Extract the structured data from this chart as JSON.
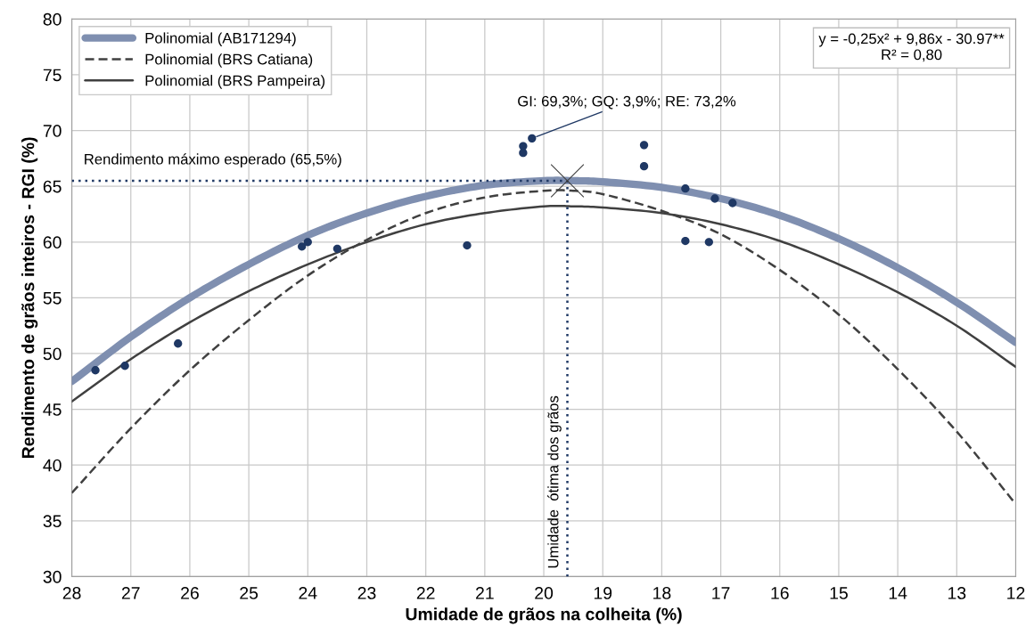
{
  "chart_data": {
    "type": "line",
    "xlabel": "Umidade de grãos na colheita (%)",
    "ylabel": "Rendimento de grãos inteiros - RGI (%)",
    "xlim": [
      28,
      12
    ],
    "xticks": [
      28,
      27,
      26,
      25,
      24,
      23,
      22,
      21,
      20,
      19,
      18,
      17,
      16,
      15,
      14,
      13,
      12
    ],
    "ylim": [
      30,
      80
    ],
    "yticks": [
      30,
      35,
      40,
      45,
      50,
      55,
      60,
      65,
      70,
      75,
      80
    ],
    "grid": true,
    "legend": "top left",
    "series": [
      {
        "name": "Polinomial (AB171294)",
        "line_style": "solid",
        "color": "#7f8fb0",
        "x": [
          28,
          27,
          26,
          25,
          24,
          23,
          22,
          21,
          20,
          19.5,
          19,
          18,
          17,
          16,
          15,
          14,
          13,
          12
        ],
        "values": [
          47.5,
          51.5,
          55,
          58,
          60.6,
          62.6,
          64.1,
          65.1,
          65.5,
          65.5,
          65.4,
          64.9,
          63.9,
          62.4,
          60.3,
          57.7,
          54.6,
          51
        ]
      },
      {
        "name": "Polinomial (BRS Catiana)",
        "line_style": "dashed",
        "color": "#404040",
        "x": [
          28,
          27,
          26,
          25,
          24,
          23,
          22,
          21,
          20,
          19.5,
          19,
          18,
          17,
          16,
          15,
          14,
          13,
          12
        ],
        "values": [
          37.5,
          43.3,
          48.5,
          53,
          57,
          60.2,
          62.6,
          64,
          64.6,
          64.6,
          64.3,
          62.8,
          60.7,
          57.5,
          53.5,
          48.6,
          43,
          36.5
        ]
      },
      {
        "name": "Polinomial (BRS Pampeira)",
        "line_style": "solid",
        "color": "#404040",
        "x": [
          28,
          27,
          26,
          25,
          24,
          23,
          22,
          21,
          20,
          19.5,
          19,
          18,
          17,
          16,
          15,
          14,
          13,
          12
        ],
        "values": [
          45.7,
          49.5,
          52.8,
          55.6,
          58,
          60,
          61.6,
          62.6,
          63.2,
          63.2,
          63.1,
          62.6,
          61.6,
          60.1,
          58,
          55.5,
          52.5,
          48.8
        ]
      },
      {
        "type": "scatter",
        "marker": "circle",
        "color": "#1f3864",
        "x": [
          27.6,
          27.1,
          26.2,
          24.1,
          24.0,
          23.5,
          21.3,
          20.35,
          20.35,
          20.2,
          18.3,
          18.3,
          17.6,
          17.6,
          17.1,
          17.2,
          16.8
        ],
        "values": [
          48.5,
          48.9,
          50.9,
          59.6,
          60.0,
          59.4,
          59.7,
          68.0,
          68.6,
          69.3,
          68.7,
          66.8,
          64.8,
          60.1,
          63.9,
          60.0,
          63.5
        ]
      },
      {
        "type": "scatter",
        "marker": "cross",
        "color": "#404040",
        "x": [
          19.6
        ],
        "values": [
          65.5
        ]
      }
    ],
    "ref_lines": [
      {
        "axis": "y",
        "value": 65.5,
        "label": "Rendimento máximo esperado (65,5%)",
        "color": "#1f3864",
        "line_style": "dotted"
      },
      {
        "axis": "x",
        "value": 19.6,
        "label": "Umidade  ótima dos grãos",
        "color": "#1f3864",
        "line_style": "dotted"
      }
    ],
    "annotations": [
      {
        "text": "GI: 69,3%; GQ: 3,9%; RE: 73,2%",
        "x": 20.2,
        "y": 69.3
      },
      "y = -0,25x² + 9,86x - 30.97**\nR² = 0,80"
    ]
  }
}
